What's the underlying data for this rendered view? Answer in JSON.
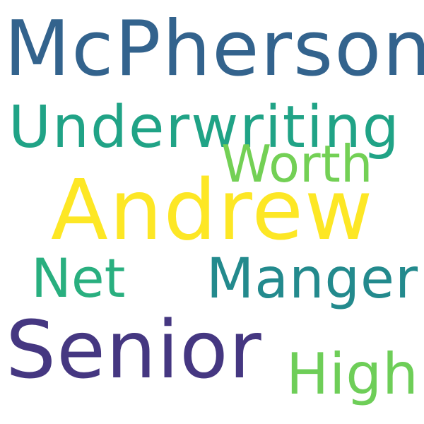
{
  "words": {
    "mcpherson": {
      "text": "McPherson",
      "color": "#33638d"
    },
    "underwriting": {
      "text": "Underwriting",
      "color": "#20a386"
    },
    "worth": {
      "text": "Worth",
      "color": "#73d055"
    },
    "andrew": {
      "text": "Andrew",
      "color": "#fde725"
    },
    "net": {
      "text": "Net",
      "color": "#29af7f"
    },
    "manger": {
      "text": "Manger",
      "color": "#238a8d"
    },
    "senior": {
      "text": "Senior",
      "color": "#453781"
    },
    "high": {
      "text": "High",
      "color": "#6ece58"
    }
  }
}
